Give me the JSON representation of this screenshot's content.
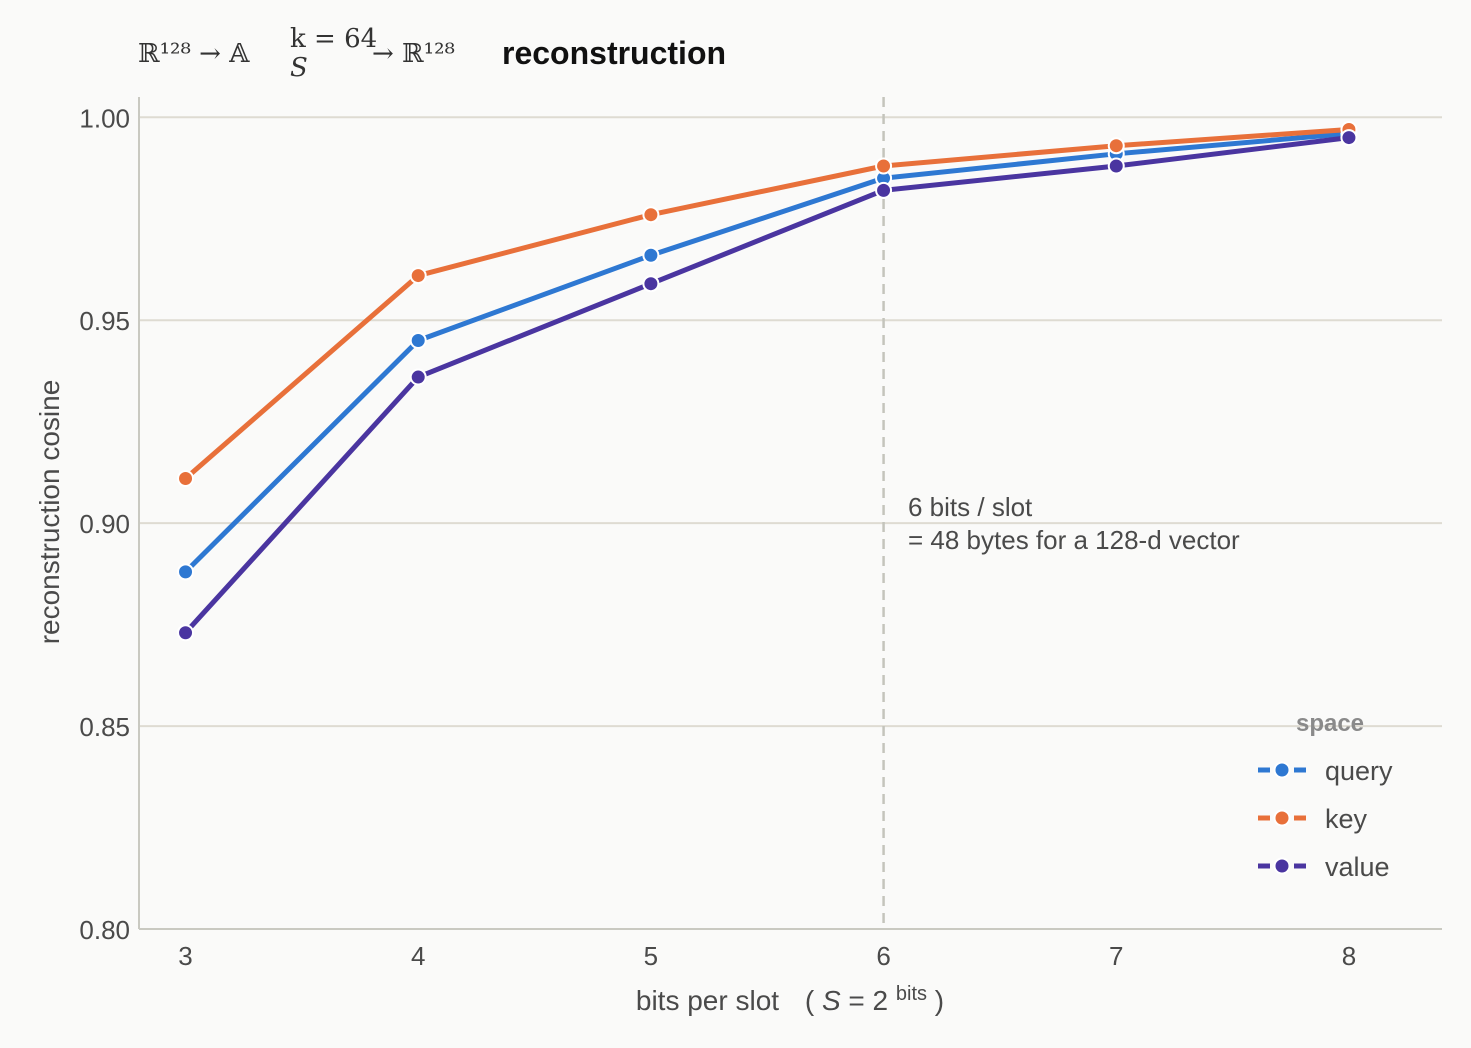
{
  "chart_data": {
    "type": "line",
    "title": {
      "pre_math": "ℝ¹²⁸ → 𝔸",
      "sup": "k = 64",
      "sub": "S",
      "post_math": "→ ℝ¹²⁸",
      "bold": "reconstruction"
    },
    "xlabel": {
      "text": "bits per slot",
      "formula_open": "(",
      "formula_var": "S",
      "formula_eq": " = 2",
      "formula_sup": "bits",
      "formula_close": ")"
    },
    "ylabel": "reconstruction cosine",
    "x": [
      3,
      4,
      5,
      6,
      7,
      8
    ],
    "x_tick_labels": [
      "3",
      "4",
      "5",
      "6",
      "7",
      "8"
    ],
    "xlim": [
      2.8,
      8.4
    ],
    "ylim": [
      0.8,
      1.005
    ],
    "y_ticks": [
      0.8,
      0.85,
      0.9,
      0.95,
      1.0
    ],
    "y_tick_labels": [
      "0.80",
      "0.85",
      "0.90",
      "0.95",
      "1.00"
    ],
    "grid": "horizontal",
    "series": [
      {
        "name": "query",
        "color": "#2e78d2",
        "values": [
          0.888,
          0.945,
          0.966,
          0.985,
          0.991,
          0.996
        ]
      },
      {
        "name": "key",
        "color": "#e8703a",
        "values": [
          0.911,
          0.961,
          0.976,
          0.988,
          0.993,
          0.997
        ]
      },
      {
        "name": "value",
        "color": "#4a35a0",
        "values": [
          0.873,
          0.936,
          0.959,
          0.982,
          0.988,
          0.995
        ]
      }
    ],
    "reference_line": {
      "x": 6,
      "style": "dashed",
      "color": "#c4c4bc"
    },
    "annotation": {
      "line1": "6 bits / slot",
      "line2": "= 48 bytes for a 128-d vector"
    },
    "legend": {
      "title": "space",
      "placement": "lower-right"
    }
  }
}
